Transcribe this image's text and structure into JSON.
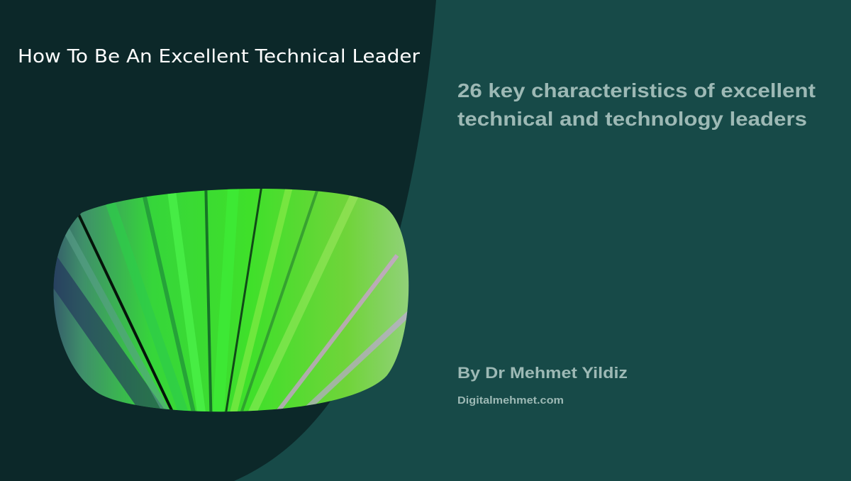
{
  "header": {
    "title": "How To Be An Excellent Technical Leader"
  },
  "subtitle": {
    "lines": [
      "26 key characteristics of excellent",
      "technical and technology leaders"
    ]
  },
  "author": "By Dr Mehmet Yildiz",
  "website": "Digitalmehmet.com"
}
